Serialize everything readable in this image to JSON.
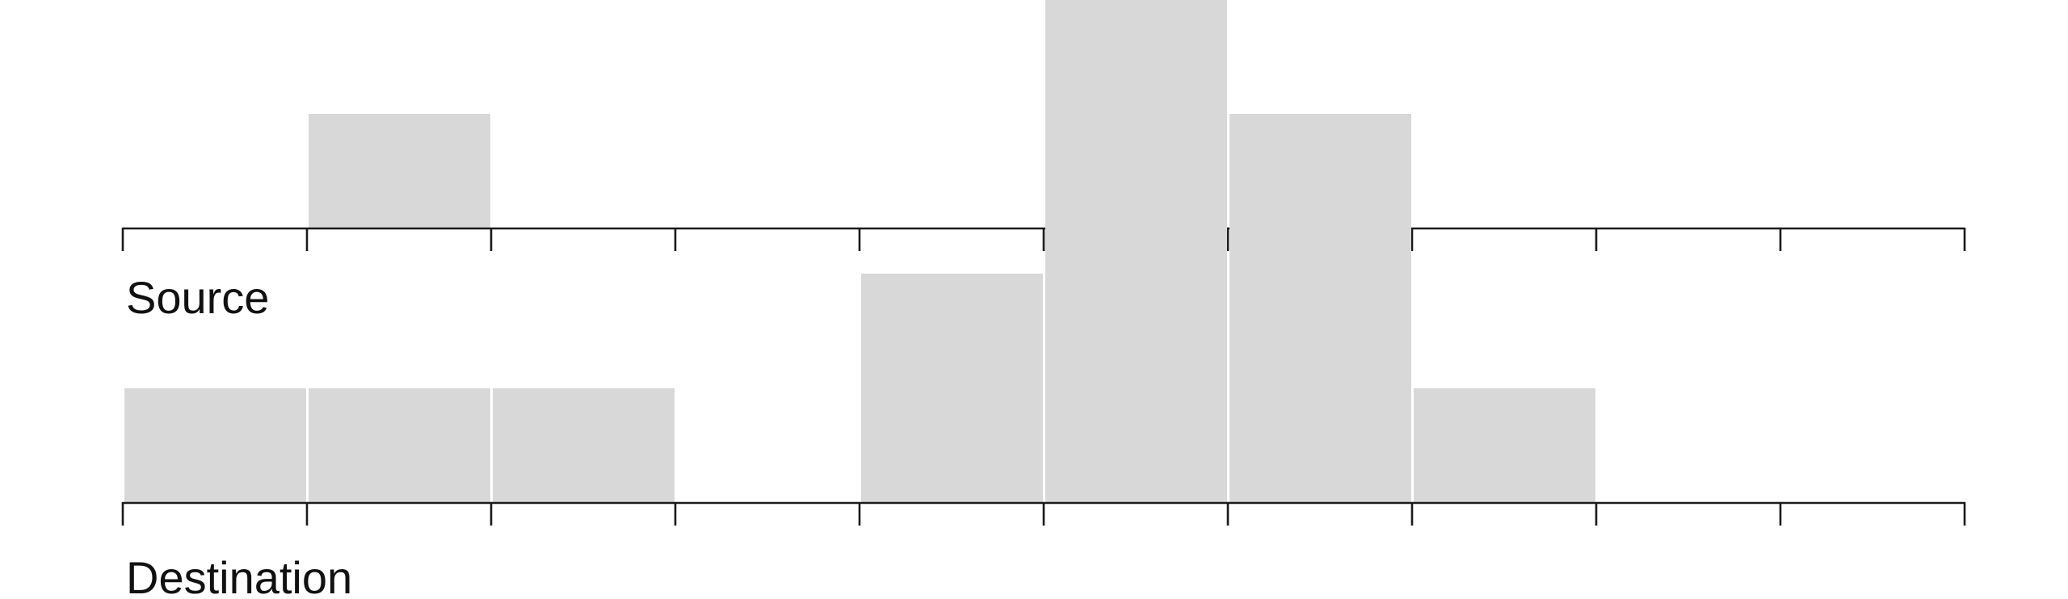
{
  "chart_data": [
    {
      "type": "bar",
      "label": "Source",
      "bins": 10,
      "values": [
        0,
        1,
        0,
        0,
        0,
        2,
        1,
        0,
        0,
        0
      ],
      "ylim": [
        0,
        2
      ],
      "grid": false
    },
    {
      "type": "bar",
      "label": "Destination",
      "bins": 10,
      "values": [
        1,
        1,
        1,
        0,
        2,
        3,
        3,
        1,
        0,
        0
      ],
      "ylim": [
        0,
        3
      ],
      "grid": false
    }
  ],
  "colors": {
    "bar": "#d8d8d8",
    "axis": "#1a1a1a",
    "background": "#ffffff"
  }
}
